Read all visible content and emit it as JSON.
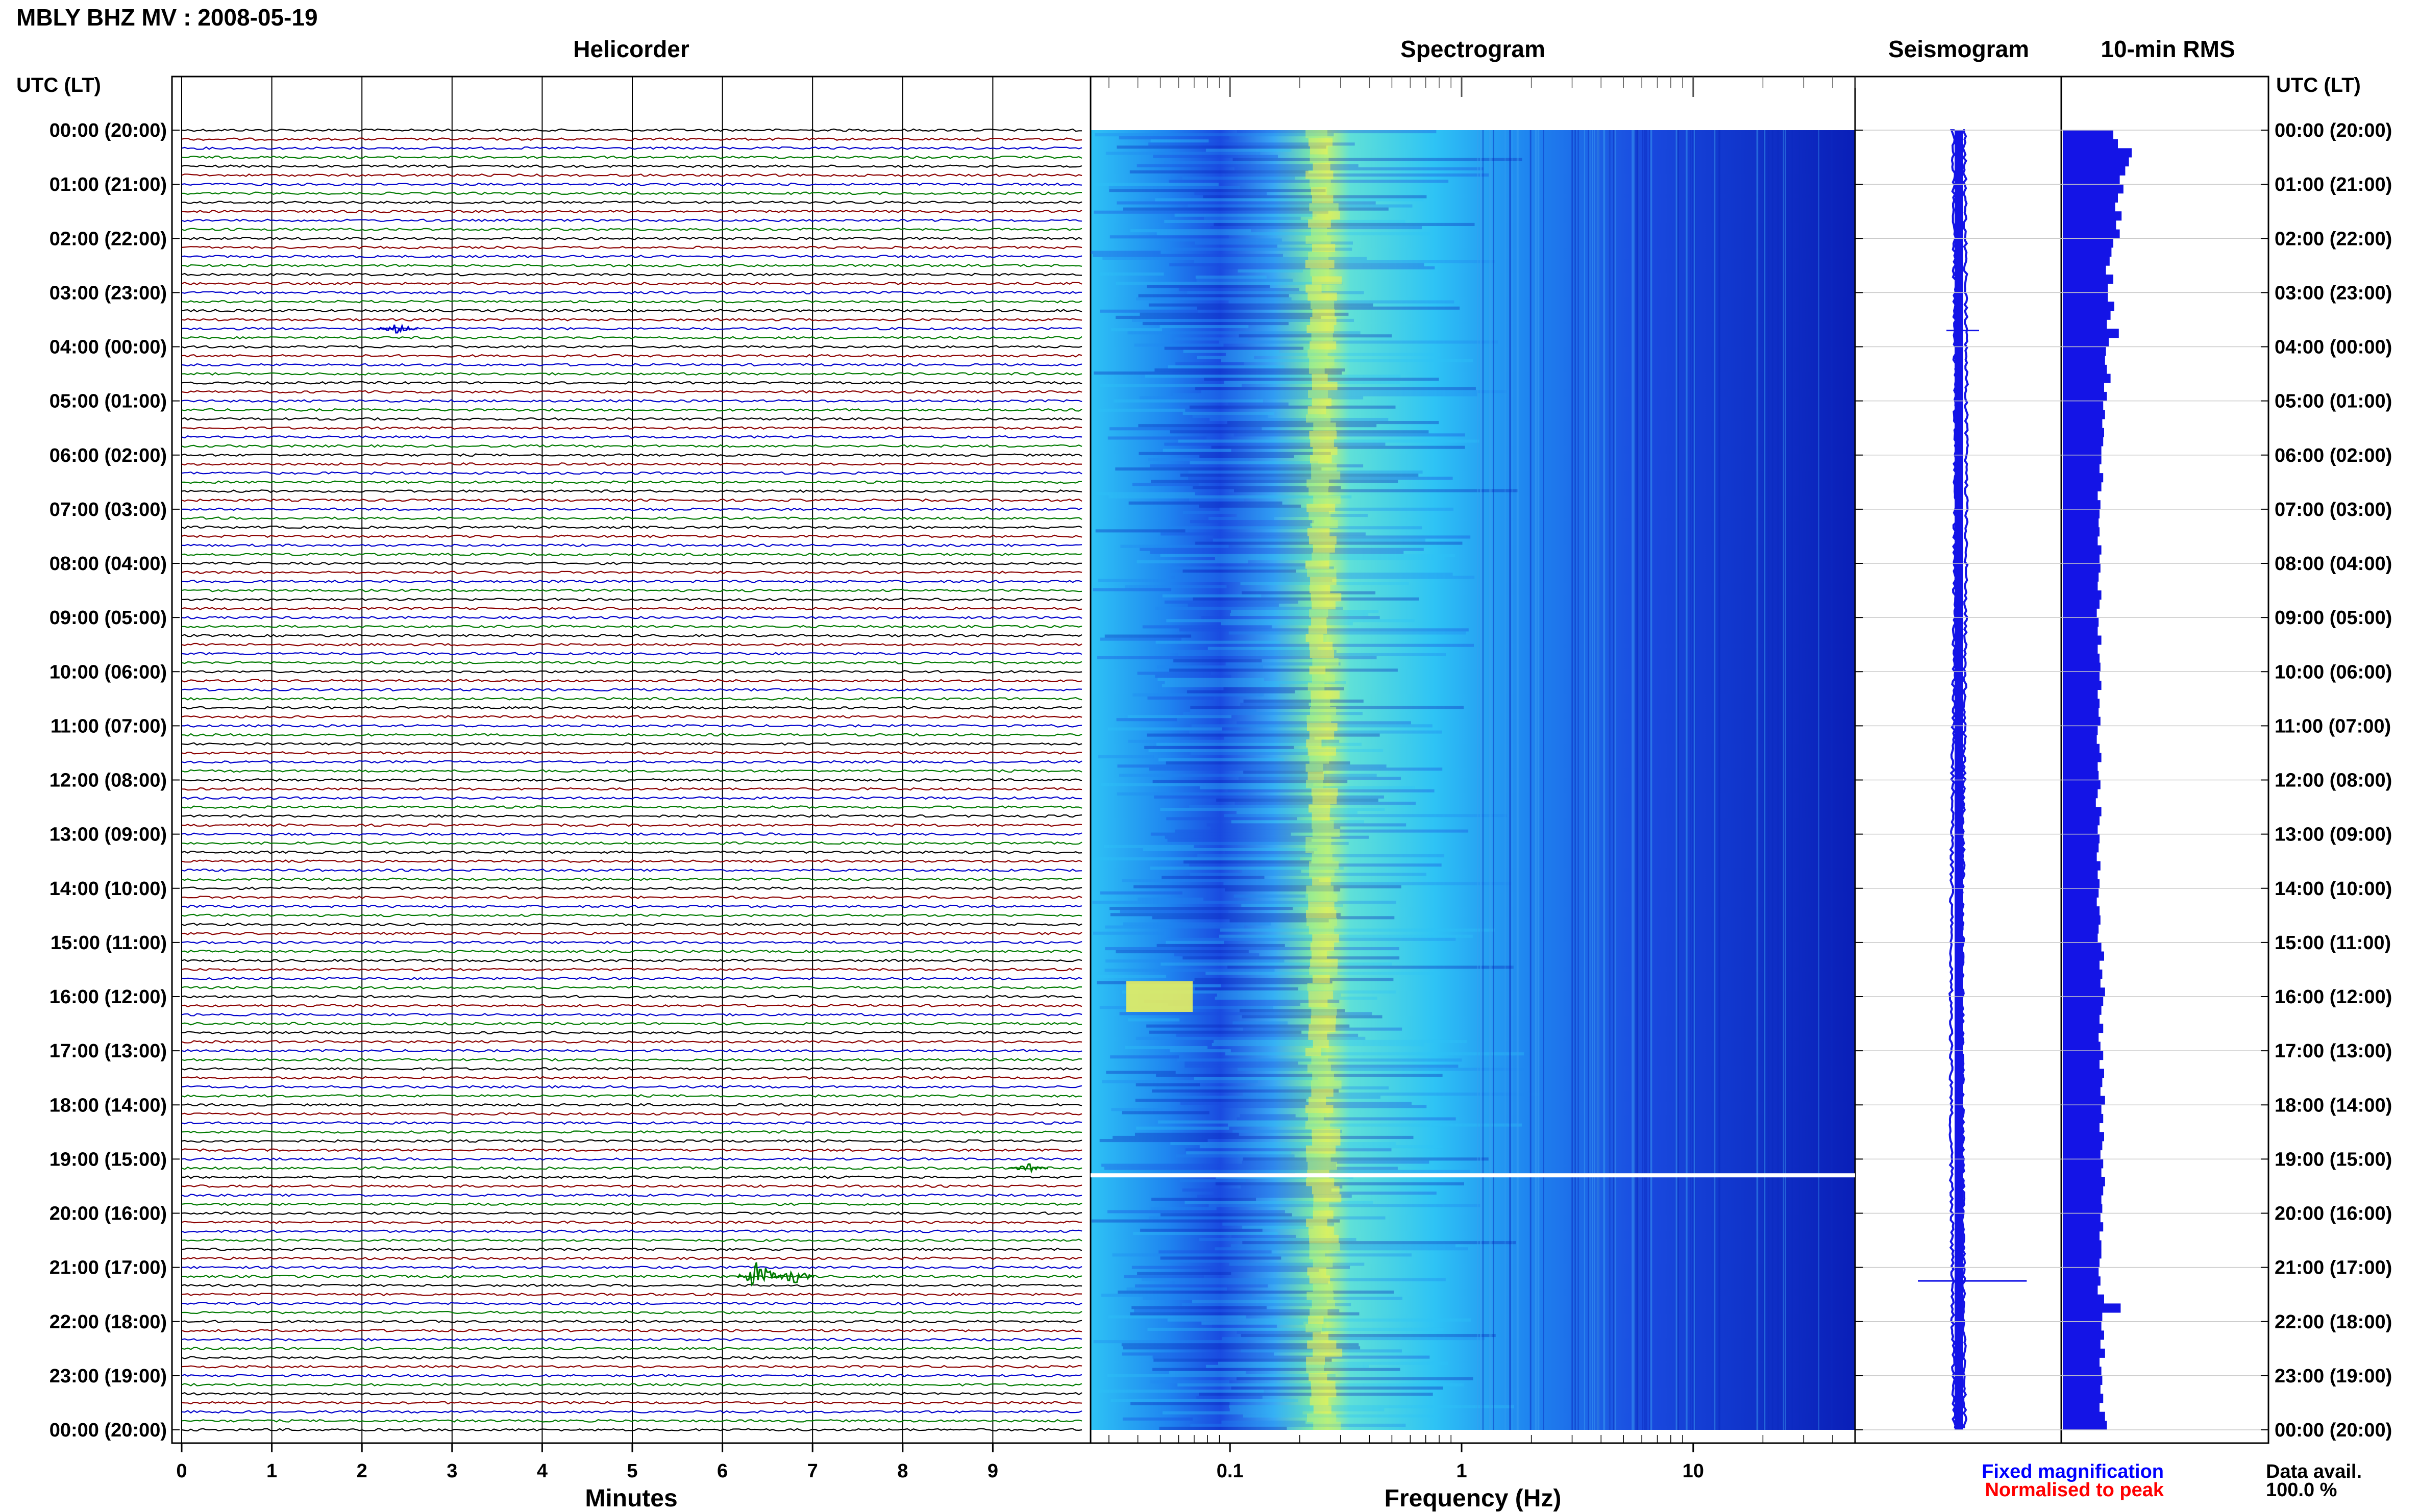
{
  "title": "MBLY BHZ MV : 2008-05-19",
  "axis_caption_utc": "UTC (LT)",
  "colors": {
    "trace_cycle": [
      "#000000",
      "#8b0000",
      "#0000cc",
      "#007a00"
    ],
    "spectrogram": [
      "#0a1fb8",
      "#1a4be0",
      "#1f86f0",
      "#2ec3f5",
      "#5fe0d8",
      "#b8f07a",
      "#f0f050"
    ],
    "rms_bar": "#1414e6",
    "seismogram": "#1414e6",
    "footer_fixed": "#0000ff",
    "footer_normalised": "#ff0000"
  },
  "panels": {
    "helicorder": "Helicorder",
    "spectrogram": "Spectrogram",
    "seismogram": "Seismogram",
    "rms": "10-min RMS"
  },
  "footer": {
    "fixed_magnification": "Fixed magnification",
    "normalised_to_peak": "Normalised to peak",
    "data_avail_label": "Data avail.",
    "data_avail_value": "100.0 %"
  },
  "chart_data": [
    {
      "type": "line",
      "name": "helicorder",
      "title": "Helicorder",
      "xlabel": "Minutes",
      "x_ticks": [
        "0",
        "1",
        "2",
        "3",
        "4",
        "5",
        "6",
        "7",
        "8",
        "9"
      ],
      "xlim": [
        0,
        10
      ],
      "traces_per_hour": 6,
      "trace_minutes": 10,
      "time_labels": [
        "00:00 (20:00)",
        "01:00 (21:00)",
        "02:00 (22:00)",
        "03:00 (23:00)",
        "04:00 (00:00)",
        "05:00 (01:00)",
        "06:00 (02:00)",
        "07:00 (03:00)",
        "08:00 (04:00)",
        "09:00 (05:00)",
        "10:00 (06:00)",
        "11:00 (07:00)",
        "12:00 (08:00)",
        "13:00 (09:00)",
        "14:00 (10:00)",
        "15:00 (11:00)",
        "16:00 (12:00)",
        "17:00 (13:00)",
        "18:00 (14:00)",
        "19:00 (15:00)",
        "20:00 (16:00)",
        "21:00 (17:00)",
        "22:00 (18:00)",
        "23:00 (19:00)",
        "00:00 (20:00)"
      ],
      "events": [
        {
          "trace_hour": 3.6,
          "minute": 2.4,
          "amplitude": 4
        },
        {
          "trace_hour": 21.1,
          "minute": 6.4,
          "amplitude": 12
        },
        {
          "trace_hour": 21.1,
          "minute": 6.8,
          "amplitude": 6
        },
        {
          "trace_hour": 19.1,
          "minute": 9.4,
          "amplitude": 3
        }
      ]
    },
    {
      "type": "heatmap",
      "name": "spectrogram",
      "title": "Spectrogram",
      "xlabel": "Frequency (Hz)",
      "x_scale": "log",
      "xlim": [
        0.025,
        50
      ],
      "x_ticks": [
        0.1,
        1,
        10
      ],
      "x_tick_labels": [
        "0.1",
        "1",
        "10"
      ],
      "ylim_hours": [
        0,
        24
      ],
      "peak_frequency_hz": 0.25,
      "gap_hour": 19.3
    },
    {
      "type": "line",
      "name": "seismogram",
      "title": "Seismogram",
      "spikes_hours": [
        3.7,
        21.25
      ]
    },
    {
      "type": "bar",
      "name": "rms_10min",
      "title": "10-min RMS",
      "ylim_hours": [
        0,
        24
      ],
      "values": [
        0.55,
        0.6,
        0.75,
        0.72,
        0.68,
        0.62,
        0.66,
        0.6,
        0.57,
        0.64,
        0.58,
        0.62,
        0.55,
        0.53,
        0.51,
        0.47,
        0.55,
        0.49,
        0.49,
        0.56,
        0.52,
        0.48,
        0.61,
        0.5,
        0.47,
        0.46,
        0.48,
        0.52,
        0.45,
        0.48,
        0.44,
        0.46,
        0.43,
        0.45,
        0.44,
        0.42,
        0.42,
        0.4,
        0.44,
        0.42,
        0.38,
        0.41,
        0.4,
        0.39,
        0.4,
        0.38,
        0.42,
        0.4,
        0.41,
        0.39,
        0.38,
        0.42,
        0.4,
        0.37,
        0.39,
        0.38,
        0.42,
        0.38,
        0.4,
        0.41,
        0.4,
        0.42,
        0.38,
        0.4,
        0.39,
        0.41,
        0.38,
        0.37,
        0.4,
        0.42,
        0.38,
        0.39,
        0.41,
        0.38,
        0.36,
        0.42,
        0.4,
        0.38,
        0.4,
        0.39,
        0.37,
        0.41,
        0.38,
        0.4,
        0.39,
        0.37,
        0.4,
        0.41,
        0.39,
        0.38,
        0.42,
        0.45,
        0.4,
        0.43,
        0.41,
        0.46,
        0.44,
        0.42,
        0.4,
        0.44,
        0.39,
        0.41,
        0.44,
        0.4,
        0.45,
        0.43,
        0.41,
        0.46,
        0.42,
        0.44,
        0.4,
        0.45,
        0.43,
        0.41,
        0.44,
        0.42,
        0.46,
        0.44,
        0.42,
        0.43,
        0.41,
        0.44,
        0.4,
        0.42,
        0.42,
        0.4,
        0.39,
        0.41,
        0.38,
        0.45,
        0.63,
        0.43,
        0.42,
        0.45,
        0.41,
        0.46,
        0.4,
        0.42,
        0.43,
        0.41,
        0.44,
        0.4,
        0.46,
        0.48
      ]
    }
  ]
}
